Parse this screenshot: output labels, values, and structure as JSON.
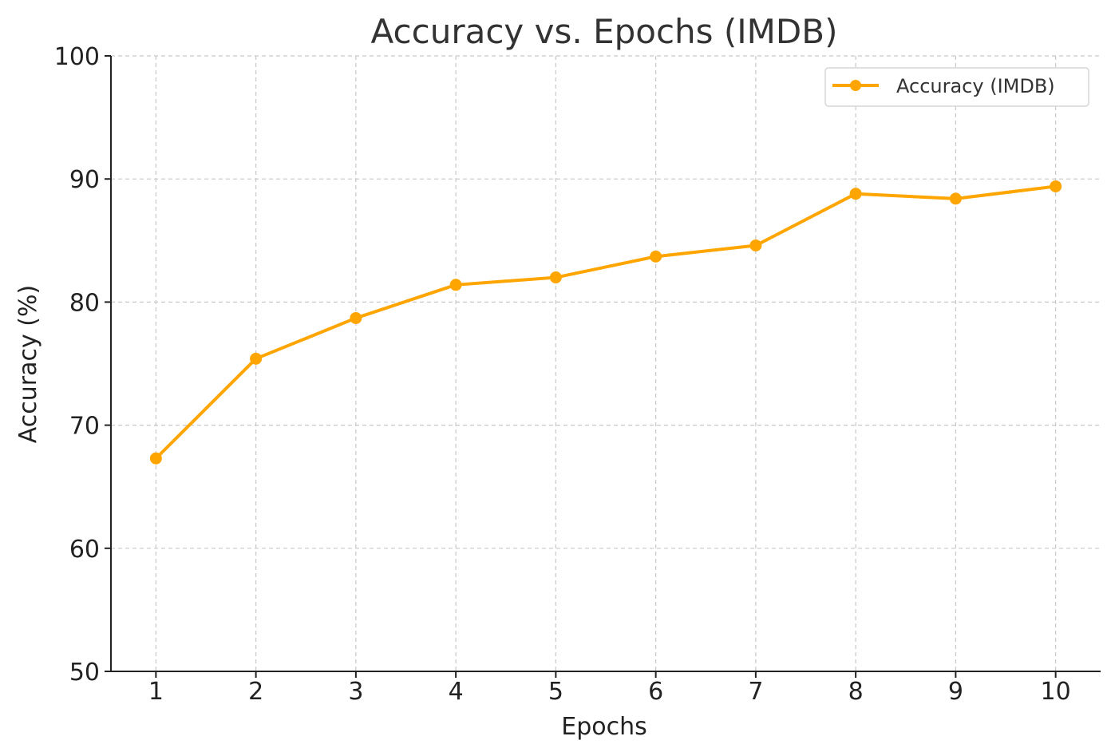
{
  "chart_data": {
    "type": "line",
    "title": "Accuracy vs. Epochs (IMDB)",
    "xlabel": "Epochs",
    "ylabel": "Accuracy (%)",
    "x": [
      1,
      2,
      3,
      4,
      5,
      6,
      7,
      8,
      9,
      10
    ],
    "x_tick_labels": [
      "1",
      "2",
      "3",
      "4",
      "5",
      "6",
      "7",
      "8",
      "9",
      "10"
    ],
    "y_ticks": [
      50,
      60,
      70,
      80,
      90,
      100
    ],
    "y_tick_labels": [
      "50",
      "60",
      "70",
      "80",
      "90",
      "100"
    ],
    "ylim": [
      50,
      100
    ],
    "xlim": [
      0.55,
      10.45
    ],
    "grid": true,
    "legend_position": "top-right",
    "series": [
      {
        "name": "Accuracy (IMDB)",
        "color": "#FFA500",
        "marker": "circle",
        "values": [
          67.3,
          75.4,
          78.7,
          81.4,
          82.0,
          83.7,
          84.6,
          88.8,
          88.4,
          89.4
        ]
      }
    ]
  }
}
